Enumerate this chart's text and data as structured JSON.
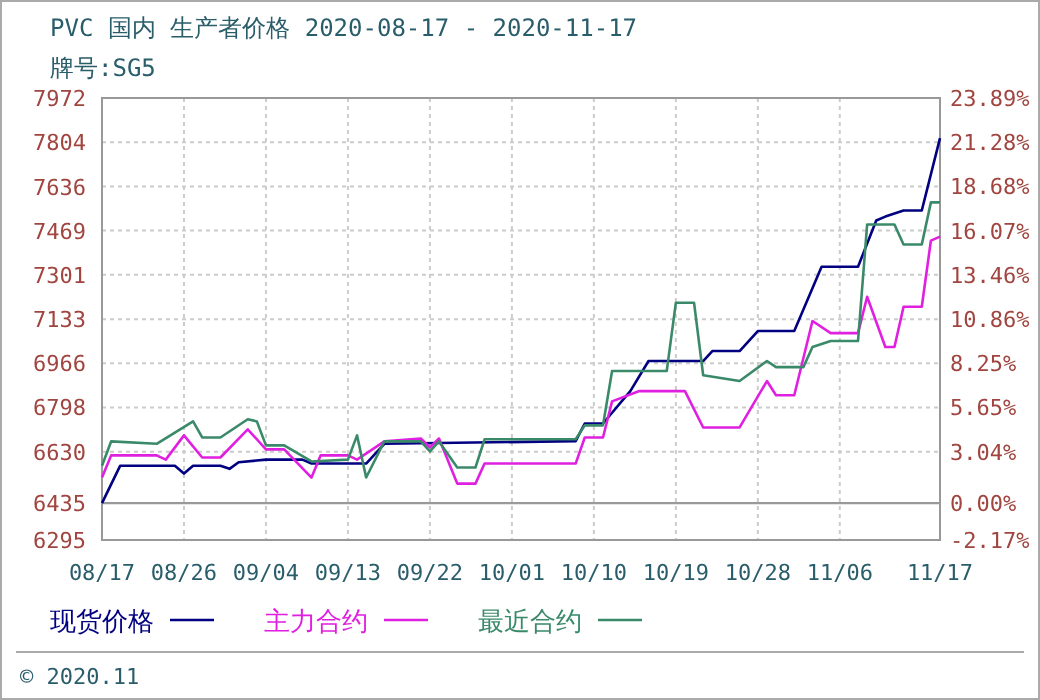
{
  "chart_data": {
    "type": "line",
    "title": "PVC 国内 生产者价格 2020-08-17 - 2020-11-17",
    "subtitle": "牌号:SG5",
    "xlim": [
      "--08-17",
      "--11-17"
    ],
    "xticks": [
      {
        "value": "--08-17",
        "label": "08/17"
      },
      {
        "value": "--08-26",
        "label": "08/26"
      },
      {
        "value": "--09-04",
        "label": "09/04"
      },
      {
        "value": "--09-13",
        "label": "09/13"
      },
      {
        "value": "--09-22",
        "label": "09/22"
      },
      {
        "value": "--10-01",
        "label": "10/01"
      },
      {
        "value": "--10-10",
        "label": "10/10"
      },
      {
        "value": "--10-19",
        "label": "10/19"
      },
      {
        "value": "--10-28",
        "label": "10/28"
      },
      {
        "value": "--11-06",
        "label": "11/06"
      },
      {
        "value": "--11-17",
        "label": "11/17"
      }
    ],
    "ylim": [
      6295,
      7972
    ],
    "yticks": [
      6295,
      6435,
      6630,
      6798,
      6966,
      7133,
      7301,
      7469,
      7636,
      7804,
      7972
    ],
    "y2lim": [
      -2.17,
      23.89
    ],
    "y2ticks": [
      {
        "value": -2.17,
        "label": "-2.17%"
      },
      {
        "value": 0,
        "label": "0.00%"
      },
      {
        "value": 3.04,
        "label": "3.04%"
      },
      {
        "value": 5.65,
        "label": "5.65%"
      },
      {
        "value": 8.25,
        "label": "8.25%"
      },
      {
        "value": 10.86,
        "label": "10.86%"
      },
      {
        "value": 13.46,
        "label": "13.46%"
      },
      {
        "value": 16.07,
        "label": "16.07%"
      },
      {
        "value": 18.68,
        "label": "18.68%"
      },
      {
        "value": 21.28,
        "label": "21.28%"
      },
      {
        "value": 23.89,
        "label": "23.89%"
      }
    ],
    "grid": true,
    "legend": "bottom",
    "marker": "none",
    "line_style": "solid",
    "ref_lines": [
      {
        "axis": "y",
        "value": 6435,
        "color": "#999999"
      }
    ],
    "annotations": [
      "© 2020.11"
    ],
    "series": [
      {
        "name": "现货价格",
        "color": "#000080",
        "x": [
          "--08-17",
          "--08-19",
          "--08-25",
          "--08-26",
          "--08-27",
          "--08-30",
          "--08-31",
          "--09-01",
          "--09-04",
          "--09-08",
          "--09-09",
          "--09-15",
          "--09-17",
          "--10-08",
          "--10-09",
          "--10-11",
          "--10-14",
          "--10-16",
          "--10-22",
          "--10-23",
          "--10-26",
          "--10-28",
          "--11-01",
          "--11-04",
          "--11-08",
          "--11-10",
          "--11-11",
          "--11-13",
          "--11-15",
          "--11-17"
        ],
        "values": [
          6435,
          6577,
          6577,
          6547,
          6577,
          6577,
          6565,
          6590,
          6600,
          6600,
          6585,
          6585,
          6660,
          6670,
          6737,
          6737,
          6860,
          6974,
          6974,
          7012,
          7012,
          7088,
          7088,
          7332,
          7332,
          7507,
          7522,
          7545,
          7545,
          7820
        ]
      },
      {
        "name": "主力合约",
        "color": "#e020e0",
        "x": [
          "--08-17",
          "--08-18",
          "--08-23",
          "--08-24",
          "--08-26",
          "--08-28",
          "--08-30",
          "--09-02",
          "--09-04",
          "--09-06",
          "--09-09",
          "--09-10",
          "--09-13",
          "--09-14",
          "--09-17",
          "--09-21",
          "--09-22",
          "--09-23",
          "--09-25",
          "--09-27",
          "--09-28",
          "--10-08",
          "--10-09",
          "--10-11",
          "--10-12",
          "--10-15",
          "--10-20",
          "--10-22",
          "--10-26",
          "--10-29",
          "--10-30",
          "--11-01",
          "--11-03",
          "--11-05",
          "--11-08",
          "--11-09",
          "--11-11",
          "--11-12",
          "--11-13",
          "--11-15",
          "--11-16",
          "--11-17"
        ],
        "values": [
          6532,
          6616,
          6616,
          6600,
          6692,
          6608,
          6608,
          6715,
          6639,
          6639,
          6532,
          6616,
          6616,
          6600,
          6669,
          6680,
          6646,
          6680,
          6509,
          6509,
          6585,
          6585,
          6684,
          6684,
          6821,
          6860,
          6860,
          6722,
          6722,
          6898,
          6844,
          6844,
          7126,
          7080,
          7080,
          7218,
          7027,
          7027,
          7180,
          7180,
          7431,
          7446
        ]
      },
      {
        "name": "最近合约",
        "color": "#3a8a6a",
        "x": [
          "--08-17",
          "--08-18",
          "--08-23",
          "--08-27",
          "--08-28",
          "--08-30",
          "--09-02",
          "--09-03",
          "--09-04",
          "--09-06",
          "--09-09",
          "--09-13",
          "--09-14",
          "--09-15",
          "--09-17",
          "--09-21",
          "--09-22",
          "--09-23",
          "--09-25",
          "--09-27",
          "--09-28",
          "--10-08",
          "--10-09",
          "--10-11",
          "--10-12",
          "--10-18",
          "--10-19",
          "--10-21",
          "--10-22",
          "--10-26",
          "--10-29",
          "--10-30",
          "--11-02",
          "--11-03",
          "--11-05",
          "--11-08",
          "--11-09",
          "--11-12",
          "--11-13",
          "--11-15",
          "--11-16",
          "--11-17"
        ],
        "values": [
          6577,
          6669,
          6660,
          6745,
          6684,
          6684,
          6753,
          6745,
          6654,
          6654,
          6593,
          6600,
          6692,
          6532,
          6669,
          6669,
          6631,
          6669,
          6570,
          6570,
          6677,
          6677,
          6730,
          6730,
          6936,
          6936,
          7195,
          7195,
          6920,
          6898,
          6974,
          6951,
          6951,
          7027,
          7050,
          7050,
          7492,
          7492,
          7416,
          7416,
          7576,
          7576
        ]
      }
    ]
  }
}
